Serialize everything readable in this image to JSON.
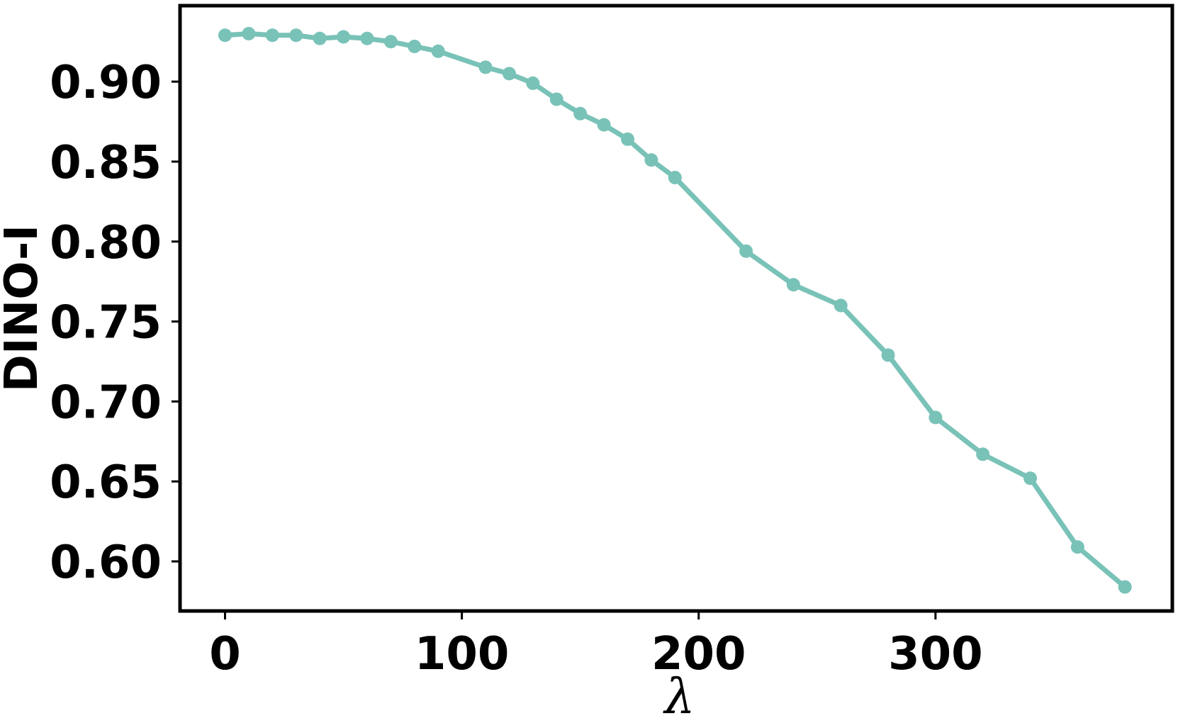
{
  "chart_data": {
    "type": "line",
    "title": "",
    "xlabel": "λ",
    "ylabel": "DINO-I",
    "xlim": [
      -19,
      400
    ],
    "ylim": [
      0.569,
      0.9475
    ],
    "xticks": [
      0,
      100,
      200,
      300
    ],
    "xtick_labels": [
      "0",
      "100",
      "200",
      "300"
    ],
    "yticks": [
      0.6,
      0.65,
      0.7,
      0.75,
      0.8,
      0.85,
      0.9
    ],
    "ytick_labels": [
      "0.60",
      "0.65",
      "0.70",
      "0.75",
      "0.80",
      "0.85",
      "0.90"
    ],
    "grid": false,
    "legend": "none",
    "series": [
      {
        "color": "#79c2b8",
        "x": [
          0,
          10,
          20,
          30,
          40,
          50,
          60,
          70,
          80,
          90,
          110,
          120,
          130,
          140,
          150,
          160,
          170,
          180,
          190,
          220,
          240,
          260,
          280,
          300,
          320,
          340,
          360,
          380
        ],
        "y": [
          0.929,
          0.93,
          0.929,
          0.929,
          0.927,
          0.928,
          0.927,
          0.925,
          0.922,
          0.919,
          0.909,
          0.905,
          0.899,
          0.889,
          0.88,
          0.873,
          0.864,
          0.851,
          0.84,
          0.794,
          0.773,
          0.76,
          0.729,
          0.69,
          0.667,
          0.652,
          0.609,
          0.584
        ]
      }
    ]
  }
}
